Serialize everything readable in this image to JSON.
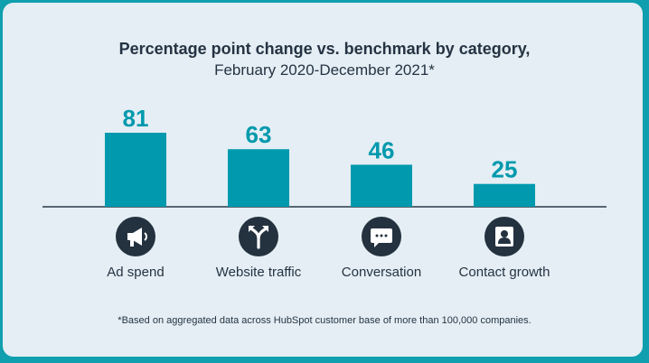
{
  "chart_data": {
    "type": "bar",
    "title": "Percentage point change vs. benchmark by category,",
    "subtitle": "February 2020-December 2021*",
    "categories": [
      "Ad spend",
      "Website traffic",
      "Conversation",
      "Contact growth"
    ],
    "values": [
      81,
      63,
      46,
      25
    ],
    "icons": [
      "megaphone-icon",
      "fork-arrow-icon",
      "chat-bubble-icon",
      "contact-card-icon"
    ],
    "ylim": [
      0,
      81
    ],
    "grid": false,
    "footnote": "*Based on aggregated data across HubSpot customer base of more than 100,000 companies."
  },
  "colors": {
    "bar": "#0099ad",
    "value_label": "#0099ad",
    "axis": "#2b3a4a",
    "icon_circle": "#24313f",
    "text": "#253343",
    "frame": "#0f9fae",
    "card": "#e4eef4"
  }
}
